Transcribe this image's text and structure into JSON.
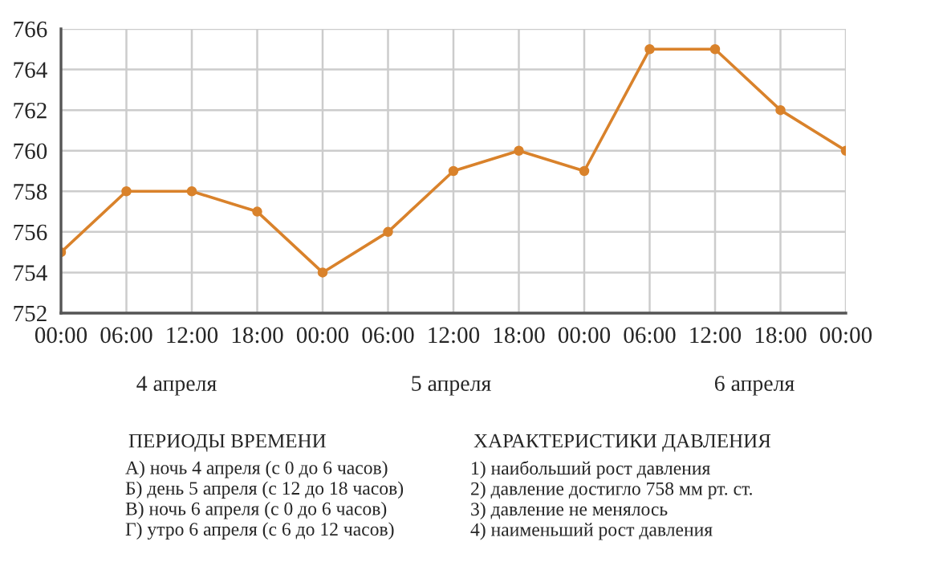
{
  "chart_data": {
    "type": "line",
    "categories": [
      "00:00",
      "06:00",
      "12:00",
      "18:00",
      "00:00",
      "06:00",
      "12:00",
      "18:00",
      "00:00",
      "06:00",
      "12:00",
      "18:00",
      "00:00"
    ],
    "series": [
      {
        "color": "#d9822b",
        "values": [
          755,
          758,
          758,
          757,
          754,
          756,
          759,
          760,
          759,
          765,
          765,
          762,
          760
        ]
      }
    ],
    "ylim": [
      752,
      766
    ],
    "yticks": [
      752,
      754,
      756,
      758,
      760,
      762,
      764,
      766
    ],
    "grid": true,
    "marker": "circle",
    "line_style": "solid",
    "annotations": [
      "4 апреля",
      "5 апреля",
      "6 апреля",
      "ПЕРИОДЫ ВРЕМЕНИ",
      "А) ночь 4 апреля (с 0 до 6 часов)\nБ) день 5 апреля (с 12 до 18 часов)\nВ) ночь 6 апреля (с 0 до 6 часов)\nГ) утро 6 апреля (с 6 до 12 часов)",
      "ХАРАКТЕРИСТИКИ ДАВЛЕНИЯ",
      "1) наибольший рост давления\n2) давление достигло 758 мм рт. ст.\n3) давление не менялось\n4) наименьший рост давления"
    ]
  }
}
